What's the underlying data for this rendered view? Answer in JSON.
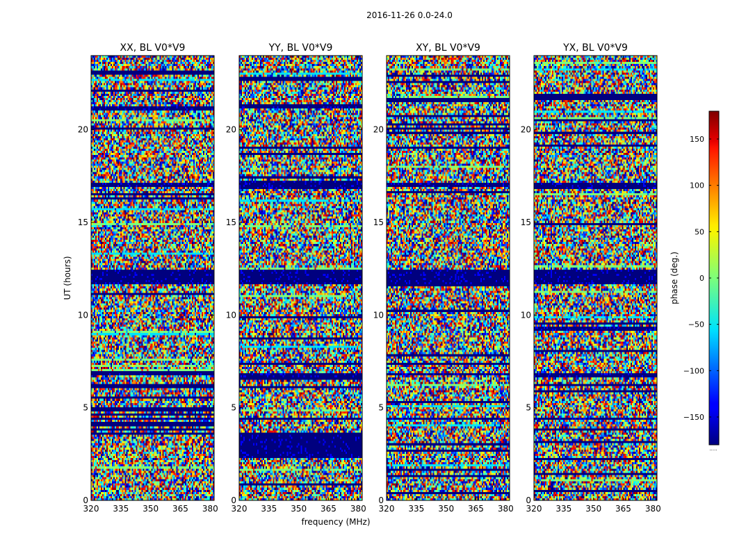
{
  "chart_data": {
    "type": "heatmap",
    "title": "2016-11-26 0.0-24.0",
    "xlabel": "frequency (MHz)",
    "ylabel": "UT (hours)",
    "xlim": [
      320,
      382
    ],
    "ylim": [
      0,
      24
    ],
    "xticks": [
      320,
      335,
      350,
      365,
      380
    ],
    "yticks": [
      0,
      5,
      10,
      15,
      20
    ],
    "panels": [
      {
        "title": "XX, BL V0*V9",
        "flagged_bands": [
          [
            11.7,
            12.4
          ],
          [
            4.3,
            4.5
          ],
          [
            16.9,
            17.1
          ],
          [
            21.0,
            21.3
          ],
          [
            6.7,
            6.9
          ]
        ]
      },
      {
        "title": "YY, BL V0*V9",
        "flagged_bands": [
          [
            11.7,
            12.4
          ],
          [
            16.8,
            17.2
          ],
          [
            6.6,
            6.9
          ],
          [
            4.3,
            4.5
          ],
          [
            2.3,
            3.6
          ],
          [
            21.1,
            21.3
          ]
        ]
      },
      {
        "title": "XY, BL V0*V9",
        "flagged_bands": [
          [
            11.7,
            12.4
          ],
          [
            16.9,
            17.1
          ],
          [
            6.7,
            6.9
          ],
          [
            4.3,
            4.5
          ]
        ]
      },
      {
        "title": "YX, BL V0*V9",
        "flagged_bands": [
          [
            11.7,
            12.4
          ],
          [
            16.8,
            17.1
          ],
          [
            6.6,
            6.9
          ],
          [
            4.3,
            4.5
          ],
          [
            9.2,
            9.4
          ]
        ]
      }
    ],
    "colorbar": {
      "label": "phase (deg.)",
      "range": [
        -180,
        180
      ],
      "ticks": [
        -150,
        -100,
        -50,
        0,
        50,
        100,
        150
      ],
      "tick_labels": [
        "−150",
        "−100",
        "−50",
        "0",
        "50",
        "100",
        "150"
      ],
      "colormap": "jet",
      "footnote": "....."
    }
  }
}
